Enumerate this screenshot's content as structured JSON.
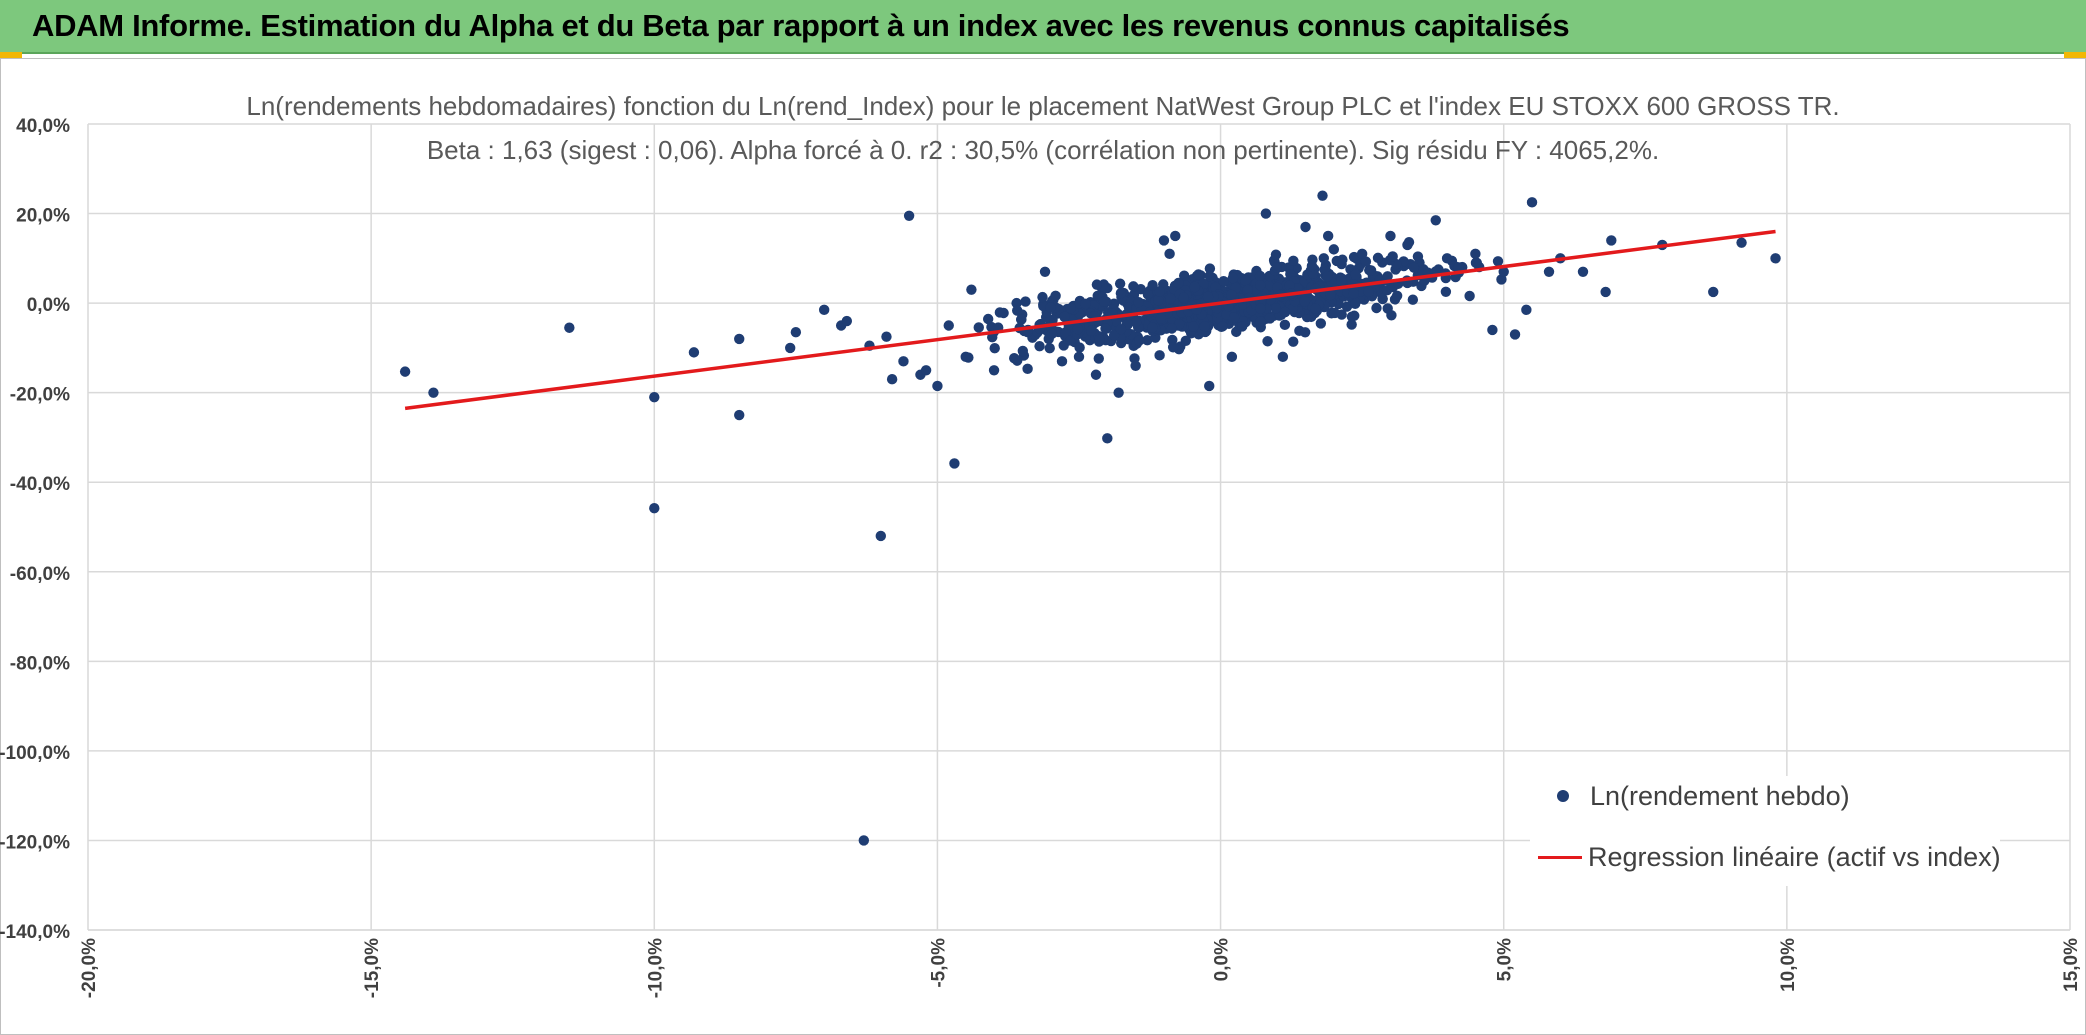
{
  "header": {
    "title": "ADAM Informe. Estimation du Alpha et du Beta par rapport à un index avec les revenus connus capitalisés"
  },
  "colors": {
    "banner": "#7dc87d",
    "corner": "#f2b705",
    "points": "#1f3d73",
    "regression": "#e31a1c",
    "grid": "#d9d9d9",
    "text": "#404040"
  },
  "chart_data": {
    "type": "scatter",
    "title": "Ln(rendements hebdomadaires) fonction du Ln(rend_Index) pour le placement NatWest Group PLC et l'index EU STOXX 600 GROSS TR.",
    "subtitle": "Beta : 1,63 (sigest : 0,06). Alpha forcé à 0. r2 : 30,5% (corrélation non pertinente). Sig résidu FY : 4065,2%.",
    "xlabel": "",
    "ylabel": "",
    "xlim": [
      -0.2,
      0.15
    ],
    "ylim": [
      -1.4,
      0.4
    ],
    "x_ticks": [
      -0.2,
      -0.15,
      -0.1,
      -0.05,
      0.0,
      0.05,
      0.1,
      0.15
    ],
    "x_tick_labels": [
      "-20,0%",
      "-15,0%",
      "-10,0%",
      "-5,0%",
      "0,0%",
      "5,0%",
      "10,0%",
      "15,0%"
    ],
    "y_ticks": [
      0.4,
      0.2,
      0.0,
      -0.2,
      -0.4,
      -0.6,
      -0.8,
      -1.0,
      -1.2,
      -1.4
    ],
    "y_tick_labels": [
      "40,0%",
      "20,0%",
      "0,0%",
      "-20,0%",
      "-40,0%",
      "-60,0%",
      "-80,0%",
      "-100,0%",
      "-120,0%",
      "-140,0%"
    ],
    "grid": true,
    "legend_position": "bottom-right",
    "series": [
      {
        "name": "Ln(rendement hebdo)",
        "kind": "scatter",
        "color": "#1f3d73",
        "points": [
          [
            -0.144,
            -0.153
          ],
          [
            -0.139,
            -0.2
          ],
          [
            -0.115,
            -0.055
          ],
          [
            -0.1,
            -0.21
          ],
          [
            -0.1,
            -0.458
          ],
          [
            -0.093,
            -0.11
          ],
          [
            -0.085,
            -0.08
          ],
          [
            -0.085,
            -0.25
          ],
          [
            -0.076,
            -0.1
          ],
          [
            -0.075,
            -0.065
          ],
          [
            -0.07,
            -0.015
          ],
          [
            -0.067,
            -0.05
          ],
          [
            -0.066,
            -0.04
          ],
          [
            -0.063,
            -1.2
          ],
          [
            -0.062,
            -0.095
          ],
          [
            -0.06,
            -0.52
          ],
          [
            -0.059,
            -0.075
          ],
          [
            -0.058,
            -0.17
          ],
          [
            -0.056,
            -0.13
          ],
          [
            -0.055,
            0.195
          ],
          [
            -0.053,
            -0.16
          ],
          [
            -0.052,
            -0.15
          ],
          [
            -0.05,
            -0.185
          ],
          [
            -0.048,
            -0.05
          ],
          [
            -0.047,
            -0.358
          ],
          [
            -0.045,
            -0.12
          ],
          [
            -0.044,
            0.03
          ],
          [
            -0.04,
            -0.15
          ],
          [
            -0.034,
            -0.06
          ],
          [
            -0.03,
            -0.01
          ],
          [
            -0.031,
            0.07
          ],
          [
            -0.028,
            -0.13
          ],
          [
            -0.025,
            -0.12
          ],
          [
            -0.022,
            -0.16
          ],
          [
            -0.02,
            -0.302
          ],
          [
            -0.018,
            -0.2
          ],
          [
            -0.015,
            -0.14
          ],
          [
            -0.012,
            0.04
          ],
          [
            -0.01,
            0.14
          ],
          [
            -0.009,
            0.11
          ],
          [
            -0.008,
            0.15
          ],
          [
            -0.002,
            -0.185
          ],
          [
            0.002,
            -0.12
          ],
          [
            0.007,
            0.04
          ],
          [
            0.008,
            0.2
          ],
          [
            0.011,
            -0.12
          ],
          [
            0.015,
            0.17
          ],
          [
            0.018,
            0.24
          ],
          [
            0.019,
            0.15
          ],
          [
            0.02,
            0.12
          ],
          [
            0.025,
            0.11
          ],
          [
            0.03,
            0.15
          ],
          [
            0.033,
            0.13
          ],
          [
            0.036,
            0.05
          ],
          [
            0.038,
            0.185
          ],
          [
            0.04,
            0.1
          ],
          [
            0.042,
            0.08
          ],
          [
            0.045,
            0.11
          ],
          [
            0.048,
            -0.06
          ],
          [
            0.05,
            0.07
          ],
          [
            0.052,
            -0.07
          ],
          [
            0.054,
            -0.015
          ],
          [
            0.055,
            0.225
          ],
          [
            0.058,
            0.07
          ],
          [
            0.06,
            0.1
          ],
          [
            0.064,
            0.07
          ],
          [
            0.068,
            0.025
          ],
          [
            0.069,
            0.14
          ],
          [
            0.078,
            0.13
          ],
          [
            0.087,
            0.025
          ],
          [
            0.092,
            0.135
          ],
          [
            0.098,
            0.1
          ]
        ],
        "cluster": {
          "center_x": 0.0,
          "spread_x": 0.018,
          "beta": 1.63,
          "residual_sd": 0.032,
          "count": 1050
        }
      },
      {
        "name": "Regression linéaire (actif vs index)",
        "kind": "line",
        "color": "#e31a1c",
        "points": [
          [
            -0.144,
            -0.235
          ],
          [
            0.098,
            0.16
          ]
        ]
      }
    ]
  }
}
